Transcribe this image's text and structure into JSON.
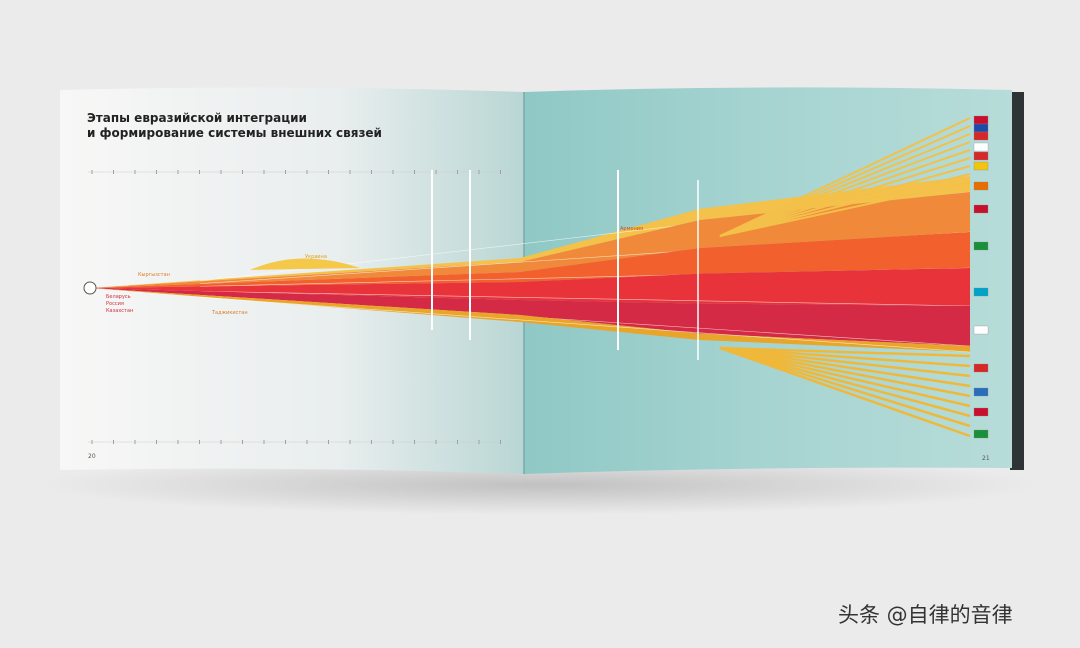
{
  "page": {
    "title_line_1": "Этапы евразийской интеграции",
    "title_line_2": "и формирование системы внешних связей",
    "founders": [
      "Беларусь",
      "Россия",
      "Казахстан"
    ],
    "labels": [
      "Кыргызстан",
      "Таджикистан",
      "Украина",
      "Армения"
    ],
    "page_left": "20",
    "page_right": "21",
    "watermark": "头条 @自律的音律"
  }
}
